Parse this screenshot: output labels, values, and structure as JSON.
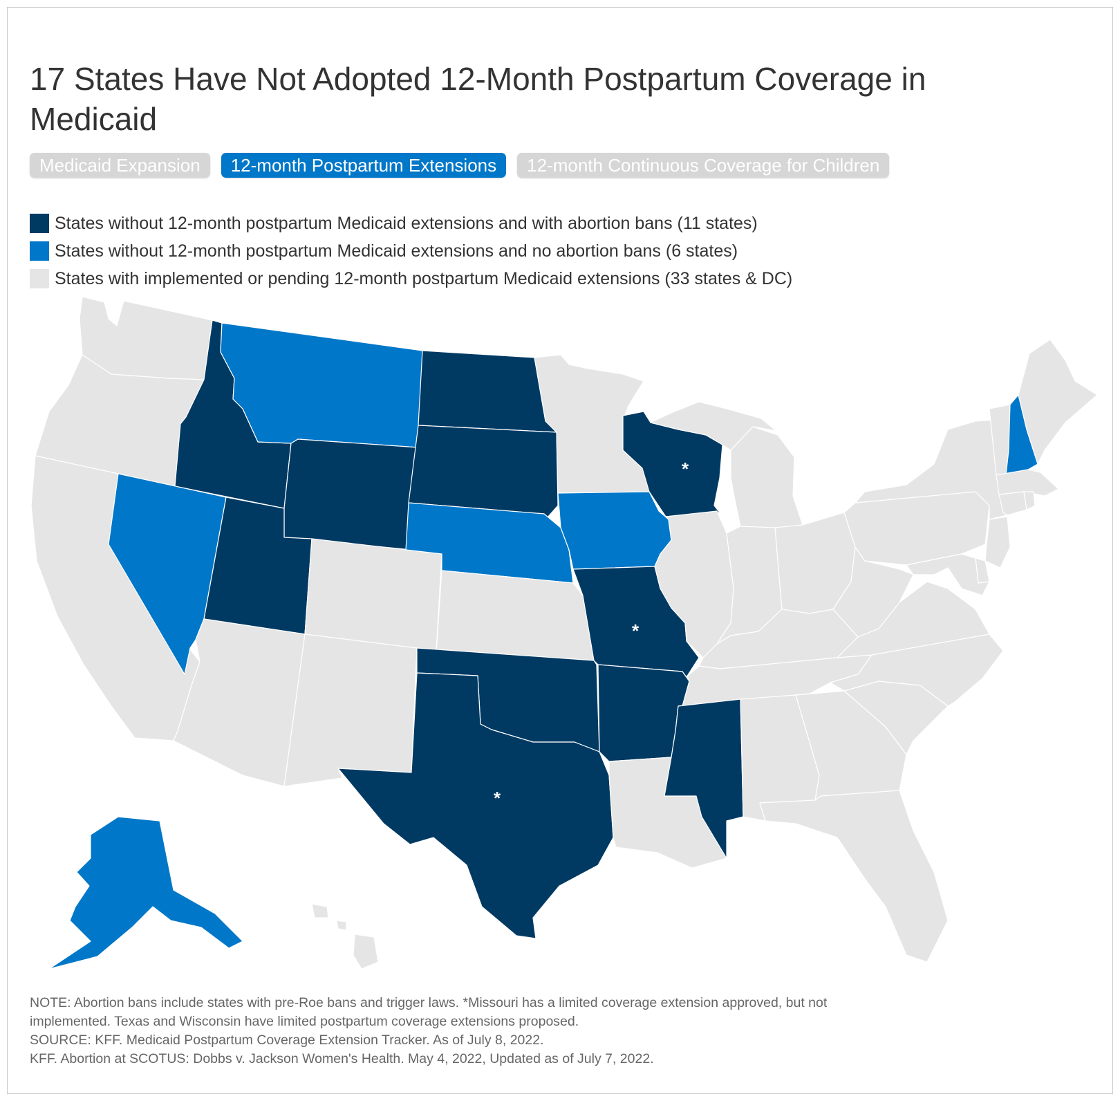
{
  "title": "17 States Have Not Adopted 12-Month Postpartum Coverage in Medicaid",
  "tabs": [
    {
      "label": "Medicaid Expansion",
      "active": false
    },
    {
      "label": "12-month Postpartum Extensions",
      "active": true
    },
    {
      "label": "12-month Continuous Coverage for Children",
      "active": false
    }
  ],
  "legend": [
    {
      "label": "States without 12-month postpartum Medicaid extensions and with abortion bans (11 states)",
      "color": "#003a63"
    },
    {
      "label": "States without 12-month postpartum Medicaid extensions and no abortion bans (6 states)",
      "color": "#0077c8"
    },
    {
      "label": "States with implemented or pending 12-month postpartum Medicaid extensions (33 states & DC)",
      "color": "#e5e5e5"
    }
  ],
  "map": {
    "colors": {
      "ban": "#003a63",
      "noban": "#0077c8",
      "extended": "#e5e5e5"
    },
    "categories": {
      "ban": [
        "Idaho",
        "Wyoming",
        "North Dakota",
        "South Dakota",
        "Utah",
        "Wisconsin",
        "Missouri",
        "Oklahoma",
        "Texas",
        "Arkansas",
        "Mississippi"
      ],
      "noban": [
        "Montana",
        "Nevada",
        "Nebraska",
        "Iowa",
        "New Hampshire",
        "Alaska"
      ],
      "extended_count": "33 states & DC"
    },
    "asterisk": "*",
    "asterisk_states": [
      "Wisconsin",
      "Missouri",
      "Texas"
    ]
  },
  "notes": [
    "NOTE: Abortion bans include states with pre-Roe bans and trigger laws. *Missouri has a limited coverage extension approved, but not",
    "implemented. Texas and Wisconsin have limited postpartum coverage extensions proposed.",
    "SOURCE: KFF. Medicaid Postpartum Coverage Extension Tracker. As of July 8, 2022.",
    "KFF. Abortion at SCOTUS: Dobbs v. Jackson Women's Health. May 4, 2022, Updated as of July 7, 2022."
  ]
}
